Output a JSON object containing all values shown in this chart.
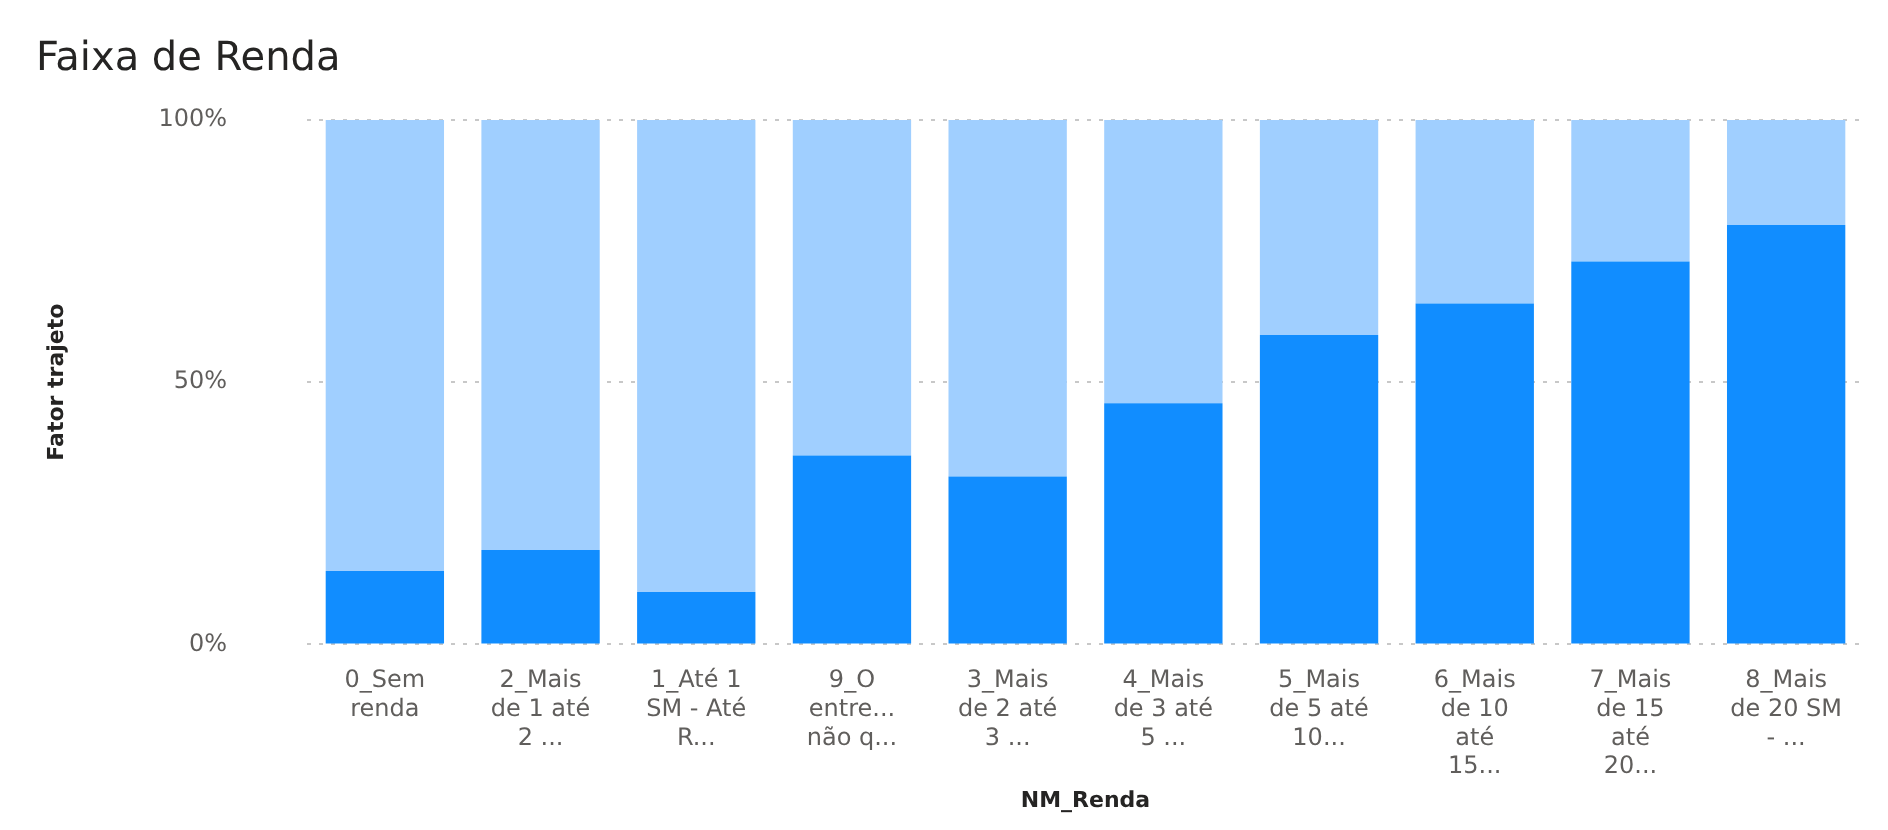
{
  "chart_data": {
    "type": "bar",
    "title": "Faixa de Renda",
    "xlabel": "NM_Renda",
    "ylabel": "Fator trajeto",
    "categories": [
      "0_Sem renda",
      "2_Mais de 1 até 2 ...",
      "1_Até 1 SM - Até R...",
      "9_O entre... não q...",
      "3_Mais de 2 até 3 ...",
      "4_Mais de 3 até 5 ...",
      "5_Mais de 5 até 10...",
      "6_Mais de 10 até 15...",
      "7_Mais de 15 até 20...",
      "8_Mais de 20 SM - ..."
    ],
    "series": [
      {
        "color": "#118dff",
        "values": [
          14,
          18,
          10,
          36,
          32,
          46,
          59,
          65,
          73,
          80
        ]
      },
      {
        "color": "#a0cfff",
        "values": [
          86,
          82,
          90,
          64,
          68,
          54,
          41,
          35,
          27,
          20
        ]
      }
    ],
    "stacked": true,
    "ylim": [
      0,
      100
    ],
    "yticks": [
      {
        "value": 0,
        "label": "0%"
      },
      {
        "value": 50,
        "label": "50%"
      },
      {
        "value": 100,
        "label": "100%"
      }
    ],
    "grid": "y",
    "legend": false
  }
}
